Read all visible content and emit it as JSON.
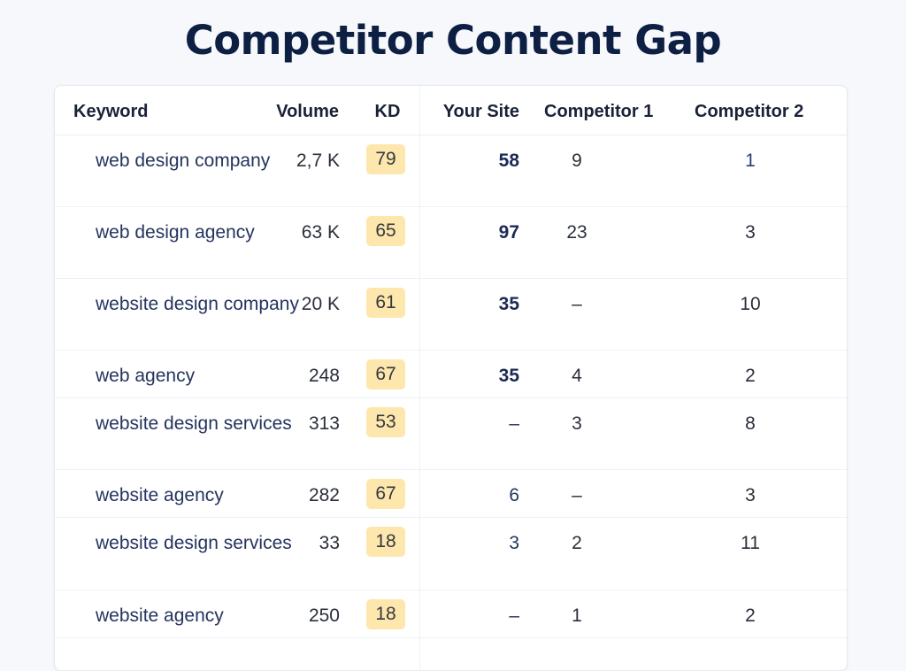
{
  "title": "Competitor Content Gap",
  "columns": {
    "keyword": "Keyword",
    "volume": "Volume",
    "kd": "KD",
    "your_site": "Your Site",
    "competitor_1": "Competitor 1",
    "competitor_2": "Competitor 2"
  },
  "rows": [
    {
      "keyword": "web design company",
      "volume": "2,7 K",
      "kd": "79",
      "your_site": "58",
      "your_site_highlight": true,
      "competitor_1": "9",
      "competitor_2": "1"
    },
    {
      "keyword": "web design agency",
      "volume": "63 K",
      "kd": "65",
      "your_site": "97",
      "your_site_highlight": true,
      "competitor_1": "23",
      "competitor_2": "3"
    },
    {
      "keyword": "website design company",
      "volume": "20 K",
      "kd": "61",
      "your_site": "35",
      "your_site_highlight": true,
      "competitor_1": "–",
      "competitor_2": "10"
    },
    {
      "keyword": "web agency",
      "volume": "248",
      "kd": "67",
      "your_site": "35",
      "your_site_highlight": true,
      "competitor_1": "4",
      "competitor_2": "2"
    },
    {
      "keyword": "website design services",
      "volume": "313",
      "kd": "53",
      "your_site": "–",
      "your_site_highlight": false,
      "competitor_1": "3",
      "competitor_2": "8"
    },
    {
      "keyword": "website agency",
      "volume": "282",
      "kd": "67",
      "your_site": "6",
      "your_site_highlight": false,
      "competitor_1": "–",
      "competitor_2": "3"
    },
    {
      "keyword": "website design services",
      "volume": "33",
      "kd": "18",
      "your_site": "3",
      "your_site_highlight": false,
      "competitor_1": "2",
      "competitor_2": "11"
    },
    {
      "keyword": "website agency",
      "volume": "250",
      "kd": "18",
      "your_site": "–",
      "your_site_highlight": false,
      "competitor_1": "1",
      "competitor_2": "2"
    }
  ],
  "colors": {
    "kd_badge": "#fde7ad",
    "title": "#0e1f44",
    "keyword_text": "#24345e"
  }
}
